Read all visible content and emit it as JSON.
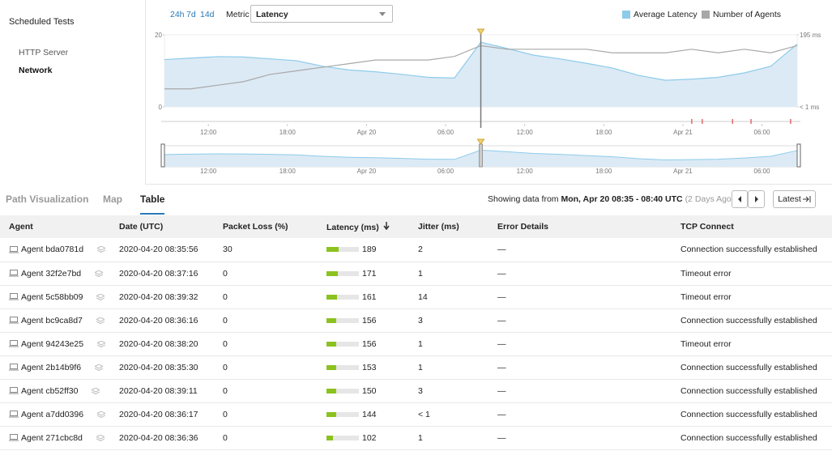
{
  "sidebar": {
    "title": "Scheduled Tests",
    "items": [
      "HTTP Server",
      "Network"
    ],
    "active": 1
  },
  "toolbar": {
    "ranges": [
      "24h",
      "7d",
      "14d"
    ],
    "metric_label": "Metric",
    "metric_value": "Latency"
  },
  "chart_data": {
    "type": "line",
    "x": [
      0,
      2,
      4,
      6,
      8,
      10,
      12,
      14,
      16,
      18,
      20,
      22,
      24,
      26,
      28,
      30,
      32,
      34,
      36,
      38,
      40,
      42,
      44,
      46,
      48
    ],
    "xlim": [
      0,
      48
    ],
    "xticks": [
      {
        "value": 3.33,
        "label": "12:00"
      },
      {
        "value": 9.33,
        "label": "18:00"
      },
      {
        "value": 15.33,
        "label": "Apr 20"
      },
      {
        "value": 21.33,
        "label": "06:00"
      },
      {
        "value": 27.33,
        "label": "12:00"
      },
      {
        "value": 33.33,
        "label": "18:00"
      },
      {
        "value": 39.33,
        "label": "Apr 21"
      },
      {
        "value": 45.33,
        "label": "06:00"
      }
    ],
    "ylim": [
      0,
      20
    ],
    "yticks": [
      0,
      20
    ],
    "y2lim": [
      0,
      195
    ],
    "y2ticks": [
      {
        "value": 0,
        "label": "< 1 ms"
      },
      {
        "value": 195,
        "label": "195 ms"
      }
    ],
    "series": [
      {
        "name": "Average Latency",
        "color": "#8dcbeb",
        "axis": "y2",
        "values": [
          128,
          132,
          136,
          135,
          130,
          125,
          110,
          100,
          95,
          88,
          80,
          78,
          175,
          158,
          140,
          130,
          118,
          105,
          85,
          72,
          75,
          80,
          92,
          110,
          170
        ]
      },
      {
        "name": "Number of Agents",
        "color": "#a8a8a8",
        "values": [
          5,
          5,
          6,
          7,
          9,
          10,
          11,
          12,
          13,
          13,
          13,
          14,
          17,
          16,
          16,
          16,
          16,
          15,
          15,
          15,
          16,
          15,
          16,
          15,
          17
        ]
      }
    ],
    "selected_x": 24,
    "alerts": [
      40,
      40.8,
      43.1,
      44.5,
      47.5
    ]
  },
  "tabs": {
    "items": [
      "Path Visualization",
      "Map",
      "Table"
    ],
    "active": 2
  },
  "info": {
    "prefix": "Showing data from",
    "range": "Mon, Apr 20 08:35 - 08:40 UTC",
    "ago": "(2 Days Ago)",
    "latest": "Latest"
  },
  "table": {
    "columns": [
      "Agent",
      "Date (UTC)",
      "Packet Loss (%)",
      "Latency (ms)",
      "Jitter (ms)",
      "Error Details",
      "TCP Connect"
    ],
    "rows": [
      [
        "Agent bda0781d",
        "2020-04-20 08:35:56",
        30,
        189,
        2,
        "—",
        "Connection successfully established"
      ],
      [
        "Agent 32f2e7bd",
        "2020-04-20 08:37:16",
        0,
        171,
        1,
        "—",
        "Timeout error"
      ],
      [
        "Agent 5c58bb09",
        "2020-04-20 08:39:32",
        0,
        161,
        14,
        "—",
        "Timeout error"
      ],
      [
        "Agent bc9ca8d7",
        "2020-04-20 08:36:16",
        0,
        156,
        3,
        "—",
        "Connection successfully established"
      ],
      [
        "Agent 94243e25",
        "2020-04-20 08:38:20",
        0,
        156,
        1,
        "—",
        "Timeout error"
      ],
      [
        "Agent 2b14b9f6",
        "2020-04-20 08:35:30",
        0,
        153,
        1,
        "—",
        "Connection successfully established"
      ],
      [
        "Agent cb52ff30",
        "2020-04-20 08:39:11",
        0,
        150,
        3,
        "—",
        "Connection successfully established"
      ],
      [
        "Agent a7dd0396",
        "2020-04-20 08:36:17",
        0,
        144,
        "< 1",
        "—",
        "Connection successfully established"
      ],
      [
        "Agent 271cbc8d",
        "2020-04-20 08:36:36",
        0,
        102,
        1,
        "—",
        "Connection successfully established"
      ]
    ]
  }
}
